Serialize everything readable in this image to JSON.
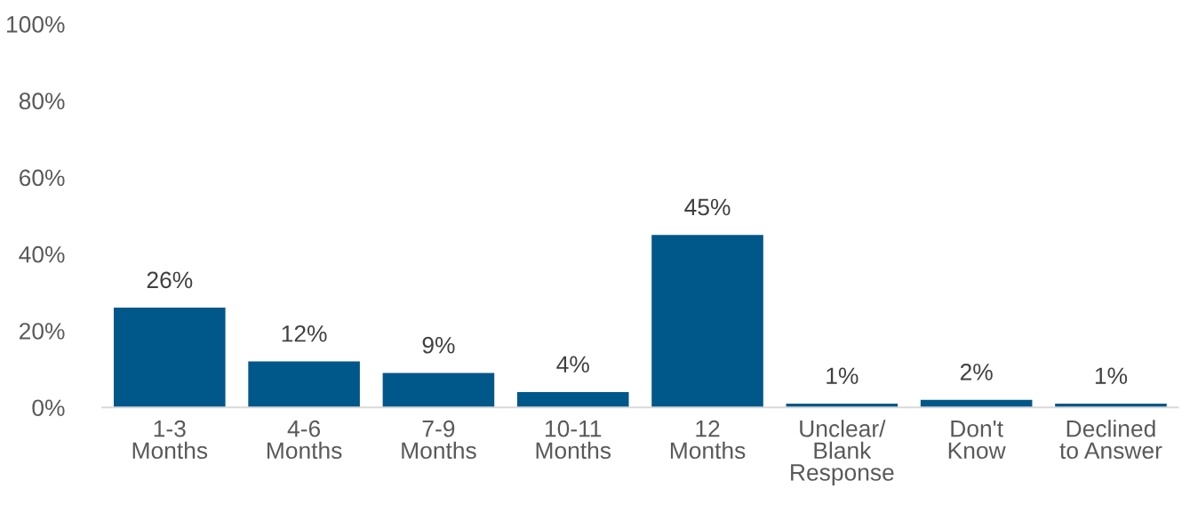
{
  "chart_data": {
    "type": "bar",
    "categories": [
      "1-3\nMonths",
      "4-6\nMonths",
      "7-9\nMonths",
      "10-11\nMonths",
      "12\nMonths",
      "Unclear/\nBlank\nResponse",
      "Don't\nKnow",
      "Declined\nto Answer"
    ],
    "values": [
      26,
      12,
      9,
      4,
      45,
      1,
      2,
      1
    ],
    "value_labels": [
      "26%",
      "12%",
      "9%",
      "4%",
      "45%",
      "1%",
      "2%",
      "1%"
    ],
    "color": "#00578a",
    "ylim": [
      0,
      100
    ],
    "yticks": [
      {
        "value": 0,
        "label": "0%"
      },
      {
        "value": 20,
        "label": "20%"
      },
      {
        "value": 40,
        "label": "40%"
      },
      {
        "value": 60,
        "label": "60%"
      },
      {
        "value": 80,
        "label": "80%"
      },
      {
        "value": 100,
        "label": "100%"
      }
    ]
  }
}
